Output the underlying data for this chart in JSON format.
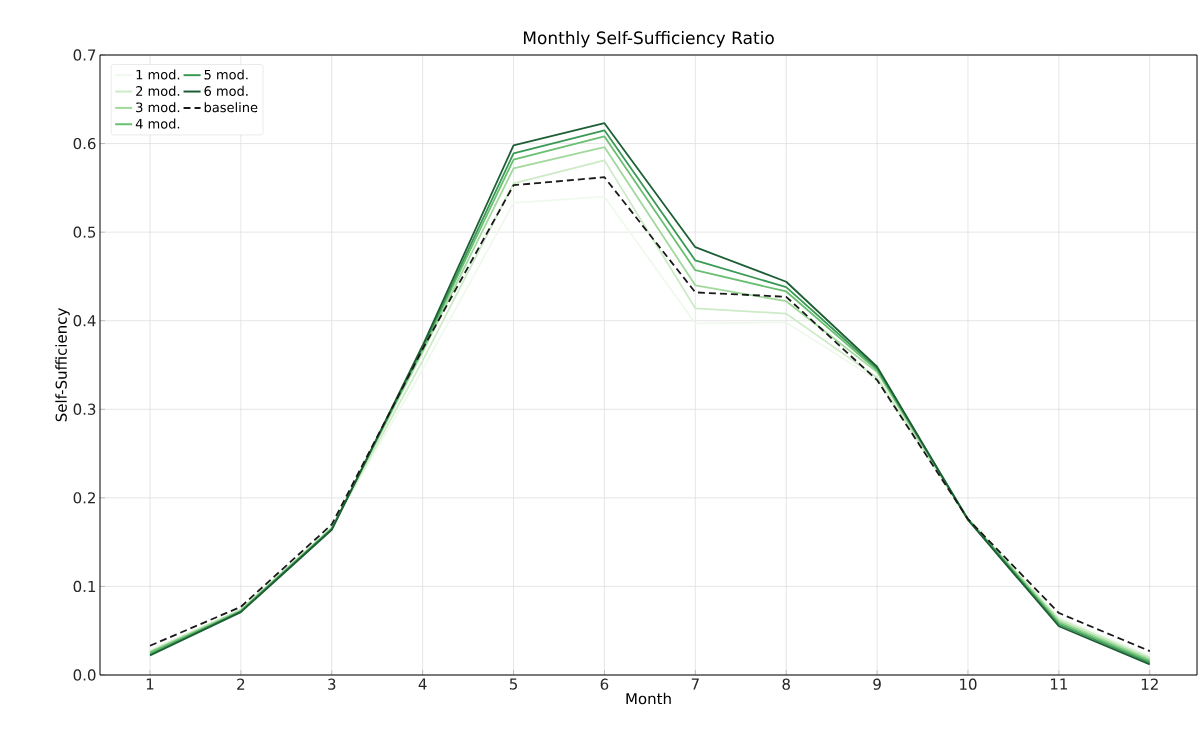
{
  "chart_data": {
    "type": "line",
    "title": "Monthly Self-Sufficiency Ratio",
    "xlabel": "Month",
    "ylabel": "Self-Sufficiency",
    "x": [
      1,
      2,
      3,
      4,
      5,
      6,
      7,
      8,
      9,
      10,
      11,
      12
    ],
    "series": [
      {
        "name": "1 mod.",
        "color": "#f0f9ed",
        "line_style": "solid",
        "values": [
          0.028,
          0.074,
          0.167,
          0.345,
          0.533,
          0.54,
          0.397,
          0.398,
          0.333,
          0.176,
          0.065,
          0.022
        ]
      },
      {
        "name": "2 mod.",
        "color": "#ccebc6",
        "line_style": "solid",
        "values": [
          0.027,
          0.074,
          0.166,
          0.355,
          0.555,
          0.581,
          0.414,
          0.408,
          0.336,
          0.176,
          0.063,
          0.02
        ]
      },
      {
        "name": "3 mod.",
        "color": "#a0d99b",
        "line_style": "solid",
        "values": [
          0.026,
          0.073,
          0.166,
          0.365,
          0.572,
          0.596,
          0.44,
          0.422,
          0.342,
          0.176,
          0.061,
          0.018
        ]
      },
      {
        "name": "4 mod.",
        "color": "#6abf71",
        "line_style": "solid",
        "values": [
          0.025,
          0.072,
          0.165,
          0.368,
          0.582,
          0.608,
          0.457,
          0.433,
          0.344,
          0.176,
          0.059,
          0.016
        ]
      },
      {
        "name": "5 mod.",
        "color": "#3a9a55",
        "line_style": "solid",
        "values": [
          0.023,
          0.072,
          0.165,
          0.37,
          0.589,
          0.615,
          0.468,
          0.438,
          0.346,
          0.176,
          0.057,
          0.014
        ]
      },
      {
        "name": "6 mod.",
        "color": "#1d5e35",
        "line_style": "solid",
        "values": [
          0.022,
          0.071,
          0.164,
          0.372,
          0.598,
          0.623,
          0.483,
          0.444,
          0.348,
          0.175,
          0.055,
          0.012
        ]
      },
      {
        "name": "baseline",
        "color": "#1a1a1a",
        "line_style": "dashed",
        "values": [
          0.033,
          0.077,
          0.17,
          0.368,
          0.553,
          0.562,
          0.432,
          0.427,
          0.333,
          0.176,
          0.07,
          0.027
        ]
      }
    ],
    "xlim": [
      0.45,
      12.52
    ],
    "xticks": [
      1,
      2,
      3,
      4,
      5,
      6,
      7,
      8,
      9,
      10,
      11,
      12
    ],
    "ylim": [
      0,
      0.7
    ],
    "yticks": [
      {
        "value": 0,
        "label": "0.0"
      },
      0.1,
      0.2,
      0.3,
      0.4,
      0.5,
      0.6,
      0.7
    ],
    "grid": true,
    "legend": "top left",
    "marker": "none"
  }
}
